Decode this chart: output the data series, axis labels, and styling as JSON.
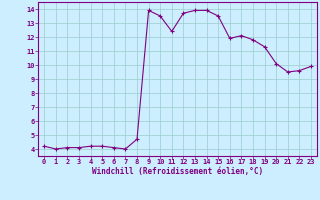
{
  "x": [
    0,
    1,
    2,
    3,
    4,
    5,
    6,
    7,
    8,
    9,
    10,
    11,
    12,
    13,
    14,
    15,
    16,
    17,
    18,
    19,
    20,
    21,
    22,
    23
  ],
  "y": [
    4.2,
    4.0,
    4.1,
    4.1,
    4.2,
    4.2,
    4.1,
    4.0,
    4.7,
    13.9,
    13.5,
    12.4,
    13.7,
    13.9,
    13.9,
    13.5,
    11.9,
    12.1,
    11.8,
    11.3,
    10.1,
    9.5,
    9.6,
    9.9
  ],
  "line_color": "#800080",
  "marker": "+",
  "marker_color": "#800080",
  "bg_color": "#cceeff",
  "grid_color": "#99cccc",
  "xlabel": "Windchill (Refroidissement éolien,°C)",
  "xlabel_color": "#800080",
  "tick_color": "#800080",
  "spine_color": "#800080",
  "ylim": [
    3.5,
    14.5
  ],
  "xlim": [
    -0.5,
    23.5
  ],
  "yticks": [
    4,
    5,
    6,
    7,
    8,
    9,
    10,
    11,
    12,
    13,
    14
  ],
  "xticks": [
    0,
    1,
    2,
    3,
    4,
    5,
    6,
    7,
    8,
    9,
    10,
    11,
    12,
    13,
    14,
    15,
    16,
    17,
    18,
    19,
    20,
    21,
    22,
    23
  ]
}
